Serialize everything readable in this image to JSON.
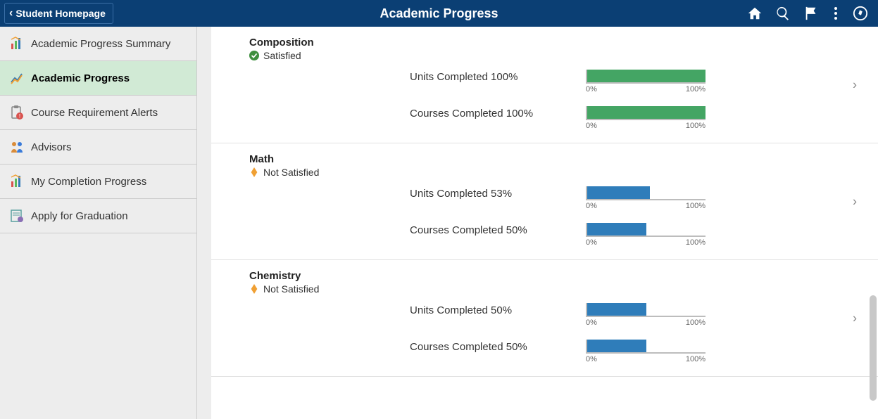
{
  "colors": {
    "header_bg": "#0b3f74",
    "satisfied_bar": "#44a564",
    "not_satisfied_bar": "#2f7dba",
    "satisfied_icon": "#3e8f3e",
    "not_satisfied_icon": "#f0a034",
    "sidebar_active_bg": "#d1ead5"
  },
  "header": {
    "back_label": "Student Homepage",
    "title": "Academic Progress"
  },
  "sidebar": {
    "items": [
      {
        "label": "Academic Progress Summary",
        "active": false,
        "icon": "bar-chart"
      },
      {
        "label": "Academic Progress",
        "active": true,
        "icon": "line-chart"
      },
      {
        "label": "Course Requirement Alerts",
        "active": false,
        "icon": "clipboard-alert"
      },
      {
        "label": "Advisors",
        "active": false,
        "icon": "people"
      },
      {
        "label": "My Completion Progress",
        "active": false,
        "icon": "bar-chart"
      },
      {
        "label": "Apply for Graduation",
        "active": false,
        "icon": "form"
      }
    ]
  },
  "scale": {
    "min_label": "0%",
    "max_label": "100%"
  },
  "sections": [
    {
      "title": "Composition",
      "status": "satisfied",
      "status_label": "Satisfied",
      "bars": [
        {
          "label": "Units Completed 100%",
          "percent": 100
        },
        {
          "label": "Courses Completed 100%",
          "percent": 100
        }
      ]
    },
    {
      "title": "Math",
      "status": "not_satisfied",
      "status_label": "Not Satisfied",
      "bars": [
        {
          "label": "Units Completed 53%",
          "percent": 53
        },
        {
          "label": "Courses Completed 50%",
          "percent": 50
        }
      ]
    },
    {
      "title": "Chemistry",
      "status": "not_satisfied",
      "status_label": "Not Satisfied",
      "bars": [
        {
          "label": "Units Completed 50%",
          "percent": 50
        },
        {
          "label": "Courses Completed 50%",
          "percent": 50
        }
      ]
    }
  ]
}
